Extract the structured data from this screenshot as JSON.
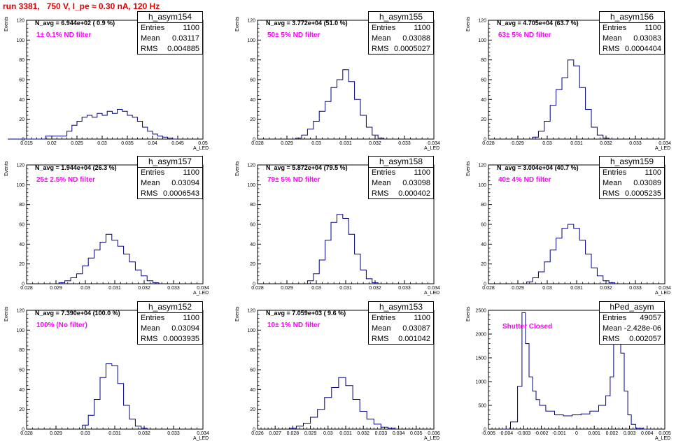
{
  "title": "run 3381,   750 V, I_pe ≈ 0.30 nA, 120 Hz",
  "chart_data": [
    {
      "type": "bar",
      "name": "h_asym154",
      "stats": {
        "entries": "1100",
        "mean": "0.03117",
        "rms": "0.004885"
      },
      "navg": "N_avg = 6.944e+02 ( 0.9 %)",
      "filter": "1± 0.1% ND filter",
      "ylabel": "Events",
      "xlabel": "A_LED",
      "xlim": [
        0.015,
        0.05
      ],
      "ylim": [
        0,
        120
      ],
      "xticks": [
        "0.015",
        "0.02",
        "0.025",
        "0.03",
        "0.035",
        "0.04",
        "0.045",
        "0.05"
      ],
      "yticks": [
        "0",
        "20",
        "40",
        "60",
        "80",
        "100",
        "120"
      ],
      "x": [
        0.015,
        0.0225,
        0.0235,
        0.0245,
        0.0255,
        0.0265,
        0.0275,
        0.0285,
        0.0295,
        0.0305,
        0.0315,
        0.0325,
        0.0335,
        0.0345,
        0.0355,
        0.0365,
        0.0375,
        0.0385,
        0.0395,
        0.0405,
        0.0415,
        0.0425,
        0.0435,
        0.0445
      ],
      "values": [
        0,
        3,
        8,
        14,
        18,
        22,
        24,
        22,
        26,
        24,
        28,
        26,
        30,
        28,
        24,
        22,
        18,
        12,
        8,
        5,
        3,
        2,
        1,
        0
      ]
    },
    {
      "type": "bar",
      "name": "h_asym155",
      "stats": {
        "entries": "1100",
        "mean": "0.03088",
        "rms": "0.0005027"
      },
      "navg": "N_avg = 3.772e+04 (51.0 %)",
      "filter": "50± 5% ND filter",
      "ylabel": "Events",
      "xlabel": "A_LED",
      "xlim": [
        0.028,
        0.034
      ],
      "ylim": [
        0,
        120
      ],
      "xticks": [
        "0.028",
        "0.029",
        "0.03",
        "0.031",
        "0.032",
        "0.033",
        "0.034"
      ],
      "yticks": [
        "0",
        "20",
        "40",
        "60",
        "80",
        "100",
        "120"
      ],
      "x": [
        0.0294,
        0.0296,
        0.0298,
        0.03,
        0.0302,
        0.0304,
        0.0306,
        0.0308,
        0.031,
        0.0312,
        0.0314,
        0.0316,
        0.0318,
        0.032,
        0.0322
      ],
      "values": [
        1,
        4,
        10,
        18,
        28,
        38,
        52,
        60,
        70,
        58,
        40,
        24,
        12,
        4,
        1
      ]
    },
    {
      "type": "bar",
      "name": "h_asym156",
      "stats": {
        "entries": "1100",
        "mean": "0.03083",
        "rms": "0.0004404"
      },
      "navg": "N_avg = 4.705e+04 (63.7 %)",
      "filter": "63± 5% ND filter",
      "ylabel": "Events",
      "xlabel": "A_LED",
      "xlim": [
        0.028,
        0.034
      ],
      "ylim": [
        0,
        120
      ],
      "xticks": [
        "0.028",
        "0.029",
        "0.03",
        "0.031",
        "0.032",
        "0.033",
        "0.034"
      ],
      "yticks": [
        "0",
        "20",
        "40",
        "60",
        "80",
        "100",
        "120"
      ],
      "x": [
        0.0296,
        0.0298,
        0.03,
        0.0302,
        0.0304,
        0.0306,
        0.0308,
        0.031,
        0.0312,
        0.0314,
        0.0316,
        0.0318,
        0.032
      ],
      "values": [
        2,
        8,
        18,
        34,
        50,
        62,
        80,
        74,
        52,
        30,
        12,
        4,
        1
      ]
    },
    {
      "type": "bar",
      "name": "h_asym157",
      "stats": {
        "entries": "1100",
        "mean": "0.03094",
        "rms": "0.0006543"
      },
      "navg": "N_avg = 1.944e+04 (26.3 %)",
      "filter": "25± 2.5% ND filter",
      "ylabel": "Events",
      "xlabel": "A_LED",
      "xlim": [
        0.028,
        0.034
      ],
      "ylim": [
        0,
        120
      ],
      "xticks": [
        "0.028",
        "0.029",
        "0.03",
        "0.031",
        "0.032",
        "0.033",
        "0.034"
      ],
      "yticks": [
        "0",
        "20",
        "40",
        "60",
        "80",
        "100",
        "120"
      ],
      "x": [
        0.0292,
        0.0294,
        0.0296,
        0.0298,
        0.03,
        0.0302,
        0.0304,
        0.0306,
        0.0308,
        0.031,
        0.0312,
        0.0314,
        0.0316,
        0.0318,
        0.032,
        0.0322,
        0.0324
      ],
      "values": [
        1,
        3,
        6,
        10,
        18,
        26,
        34,
        42,
        50,
        44,
        38,
        30,
        22,
        14,
        8,
        3,
        1
      ]
    },
    {
      "type": "bar",
      "name": "h_asym158",
      "stats": {
        "entries": "1100",
        "mean": "0.03098",
        "rms": "0.000402"
      },
      "navg": "N_avg = 5.872e+04 (79.5 %)",
      "filter": "79± 5% ND filter",
      "ylabel": "Events",
      "xlabel": "A_LED",
      "xlim": [
        0.028,
        0.034
      ],
      "ylim": [
        0,
        120
      ],
      "xticks": [
        "0.028",
        "0.029",
        "0.03",
        "0.031",
        "0.032",
        "0.033",
        "0.034"
      ],
      "yticks": [
        "0",
        "20",
        "40",
        "60",
        "80",
        "100",
        "120"
      ],
      "x": [
        0.0298,
        0.03,
        0.0302,
        0.0304,
        0.0306,
        0.0308,
        0.031,
        0.0312,
        0.0314,
        0.0316,
        0.0318,
        0.032
      ],
      "values": [
        3,
        10,
        24,
        44,
        62,
        70,
        66,
        50,
        30,
        14,
        5,
        1
      ]
    },
    {
      "type": "bar",
      "name": "h_asym159",
      "stats": {
        "entries": "1100",
        "mean": "0.03089",
        "rms": "0.0005235"
      },
      "navg": "N_avg = 3.004e+04 (40.7 %)",
      "filter": "40± 4% ND filter",
      "ylabel": "Events",
      "xlabel": "A_LED",
      "xlim": [
        0.028,
        0.034
      ],
      "ylim": [
        0,
        120
      ],
      "xticks": [
        "0.028",
        "0.029",
        "0.03",
        "0.031",
        "0.032",
        "0.033",
        "0.034"
      ],
      "yticks": [
        "0",
        "20",
        "40",
        "60",
        "80",
        "100",
        "120"
      ],
      "x": [
        0.0294,
        0.0296,
        0.0298,
        0.03,
        0.0302,
        0.0304,
        0.0306,
        0.0308,
        0.031,
        0.0312,
        0.0314,
        0.0316,
        0.0318,
        0.032,
        0.0322
      ],
      "values": [
        2,
        6,
        12,
        22,
        34,
        46,
        56,
        60,
        56,
        44,
        30,
        16,
        8,
        3,
        1
      ]
    },
    {
      "type": "bar",
      "name": "h_asym152",
      "stats": {
        "entries": "1100",
        "mean": "0.03094",
        "rms": "0.0003935"
      },
      "navg": "N_avg = 7.390e+04 (100.0 %)",
      "filter": "100% (No filter)",
      "ylabel": "Events",
      "xlabel": "A_LED",
      "xlim": [
        0.028,
        0.034
      ],
      "ylim": [
        0,
        120
      ],
      "xticks": [
        "0.028",
        "0.029",
        "0.03",
        "0.031",
        "0.032",
        "0.033",
        "0.034"
      ],
      "yticks": [
        "0",
        "20",
        "40",
        "60",
        "80",
        "100",
        "120"
      ],
      "x": [
        0.03,
        0.0302,
        0.0304,
        0.0306,
        0.0308,
        0.031,
        0.0312,
        0.0314,
        0.0316,
        0.0318,
        0.032
      ],
      "values": [
        4,
        14,
        30,
        52,
        66,
        64,
        46,
        24,
        10,
        3,
        1
      ]
    },
    {
      "type": "bar",
      "name": "h_asym153",
      "stats": {
        "entries": "1100",
        "mean": "0.03087",
        "rms": "0.001042"
      },
      "navg": "N_avg = 7.059e+03 ( 9.6 %)",
      "filter": "10± 1% ND filter",
      "ylabel": "Events",
      "xlabel": "A_LED",
      "xlim": [
        0.026,
        0.036
      ],
      "ylim": [
        0,
        120
      ],
      "xticks": [
        "0.026",
        "0.027",
        "0.028",
        "0.029",
        "0.03",
        "0.031",
        "0.032",
        "0.033",
        "0.034",
        "0.035",
        "0.036"
      ],
      "yticks": [
        "0",
        "20",
        "40",
        "60",
        "80",
        "100",
        "120"
      ],
      "x": [
        0.028,
        0.0284,
        0.0288,
        0.0292,
        0.0296,
        0.03,
        0.0304,
        0.0308,
        0.0312,
        0.0316,
        0.032,
        0.0324,
        0.0328,
        0.0332,
        0.0336
      ],
      "values": [
        1,
        3,
        6,
        12,
        20,
        32,
        42,
        52,
        44,
        30,
        18,
        10,
        5,
        2,
        1
      ]
    },
    {
      "type": "bar",
      "name": "hPed_asym",
      "stats": {
        "entries": "49057",
        "mean": "-2.428e-06",
        "rms": "0.002057"
      },
      "navg": "",
      "filter": "Shutter Closed",
      "ylabel": "Events",
      "xlabel": "A_LED",
      "xlim": [
        -0.005,
        0.005
      ],
      "ylim": [
        0,
        2500
      ],
      "xticks": [
        "-0.005",
        "-0.004",
        "-0.003",
        "-0.002",
        "-0.001",
        "0",
        "0.001",
        "0.002",
        "0.003",
        "0.004",
        "0.005"
      ],
      "yticks": [
        "0",
        "500",
        "1000",
        "1500",
        "2000",
        "2500"
      ],
      "x": [
        -0.004,
        -0.0035,
        -0.0032,
        -0.003,
        -0.0028,
        -0.0026,
        -0.0024,
        -0.0022,
        -0.002,
        -0.0015,
        -0.001,
        -0.0005,
        0.0,
        0.0005,
        0.001,
        0.0015,
        0.0018,
        0.002,
        0.0022,
        0.0024,
        0.0026,
        0.0028,
        0.003,
        0.0032,
        0.0035,
        0.004
      ],
      "values": [
        0,
        150,
        900,
        2450,
        1800,
        1100,
        800,
        620,
        500,
        380,
        300,
        280,
        300,
        320,
        380,
        500,
        700,
        1100,
        1800,
        2300,
        1600,
        800,
        300,
        100,
        20,
        0
      ]
    }
  ]
}
